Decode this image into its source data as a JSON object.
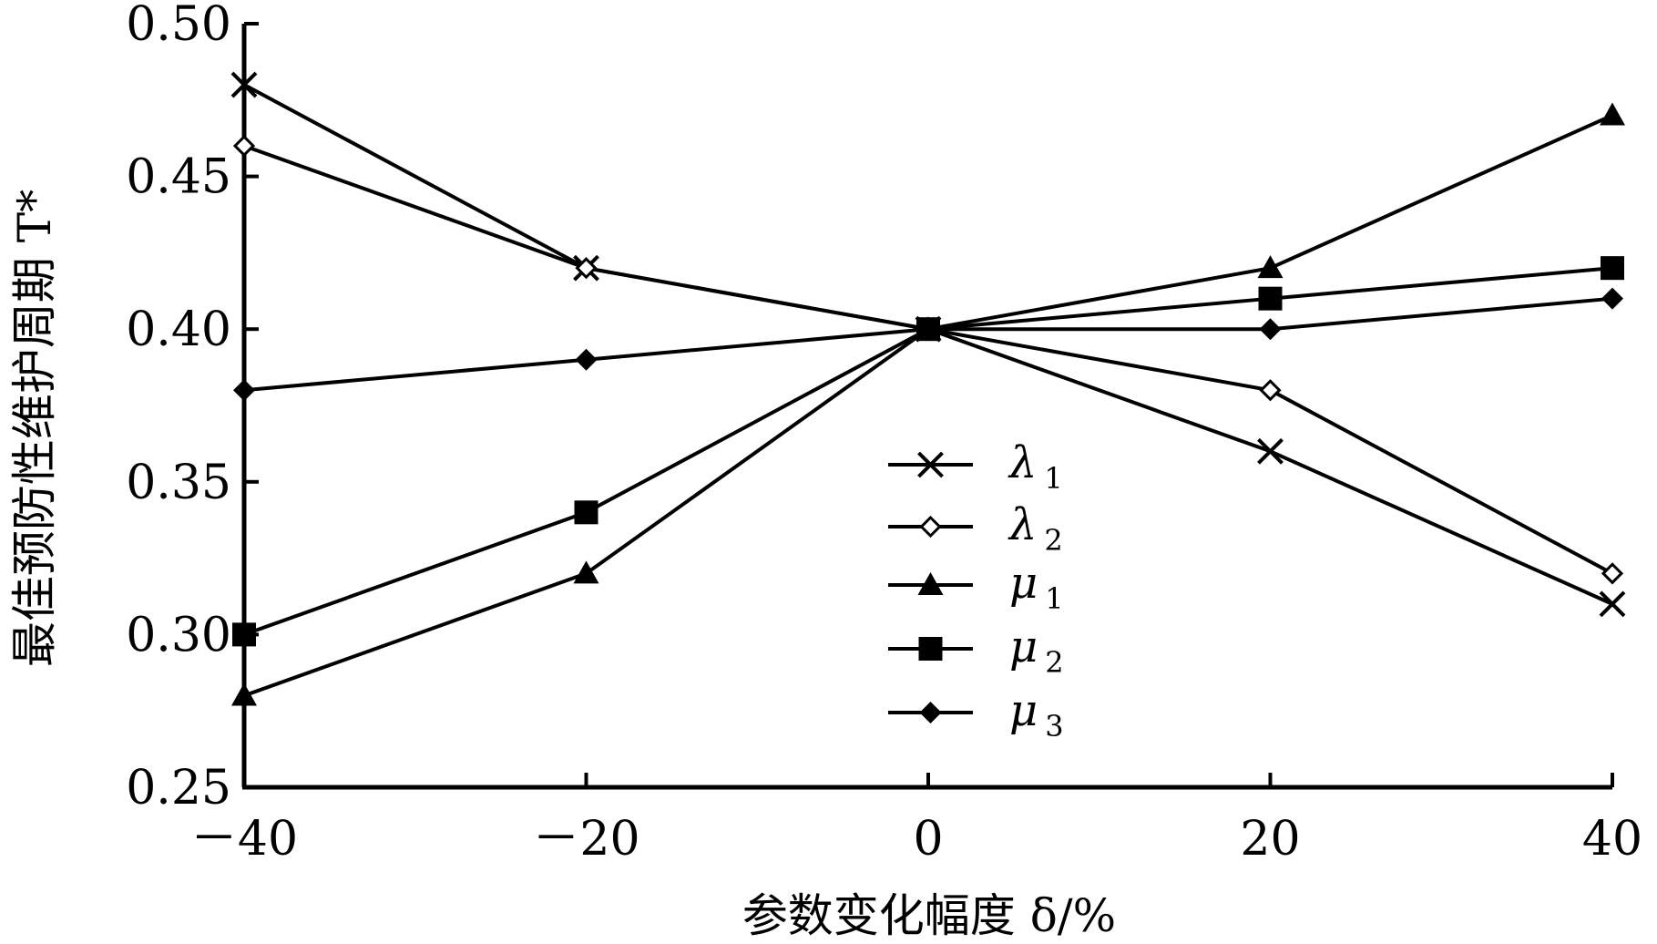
{
  "chart_data": {
    "type": "line",
    "title": "",
    "xlabel": "参数变化幅度 δ/%",
    "ylabel": "最佳预防性维护周期 T*",
    "x": [
      -40,
      -20,
      0,
      20,
      40
    ],
    "xtick_labels": [
      "－40",
      "－20",
      "0",
      "20",
      "40"
    ],
    "ytick_labels": [
      "0.25",
      "0.30",
      "0.35",
      "0.40",
      "0.45",
      "0.50"
    ],
    "yticks": [
      0.25,
      0.3,
      0.35,
      0.4,
      0.45,
      0.5
    ],
    "xlim": [
      -40,
      40
    ],
    "ylim": [
      0.25,
      0.5
    ],
    "grid": false,
    "legend_position": "center",
    "series": [
      {
        "name": "λ",
        "sub": "1",
        "marker": "x",
        "values": [
          0.48,
          0.42,
          0.4,
          0.36,
          0.31
        ]
      },
      {
        "name": "λ",
        "sub": "2",
        "marker": "diamond-open",
        "values": [
          0.46,
          0.42,
          0.4,
          0.38,
          0.32
        ]
      },
      {
        "name": "μ",
        "sub": "1",
        "marker": "triangle",
        "values": [
          0.28,
          0.32,
          0.4,
          0.42,
          0.47
        ]
      },
      {
        "name": "μ",
        "sub": "2",
        "marker": "square",
        "values": [
          0.3,
          0.34,
          0.4,
          0.41,
          0.42
        ]
      },
      {
        "name": "μ",
        "sub": "3",
        "marker": "diamond",
        "values": [
          0.38,
          0.39,
          0.4,
          0.4,
          0.41
        ]
      }
    ],
    "line_color": "#000000"
  }
}
